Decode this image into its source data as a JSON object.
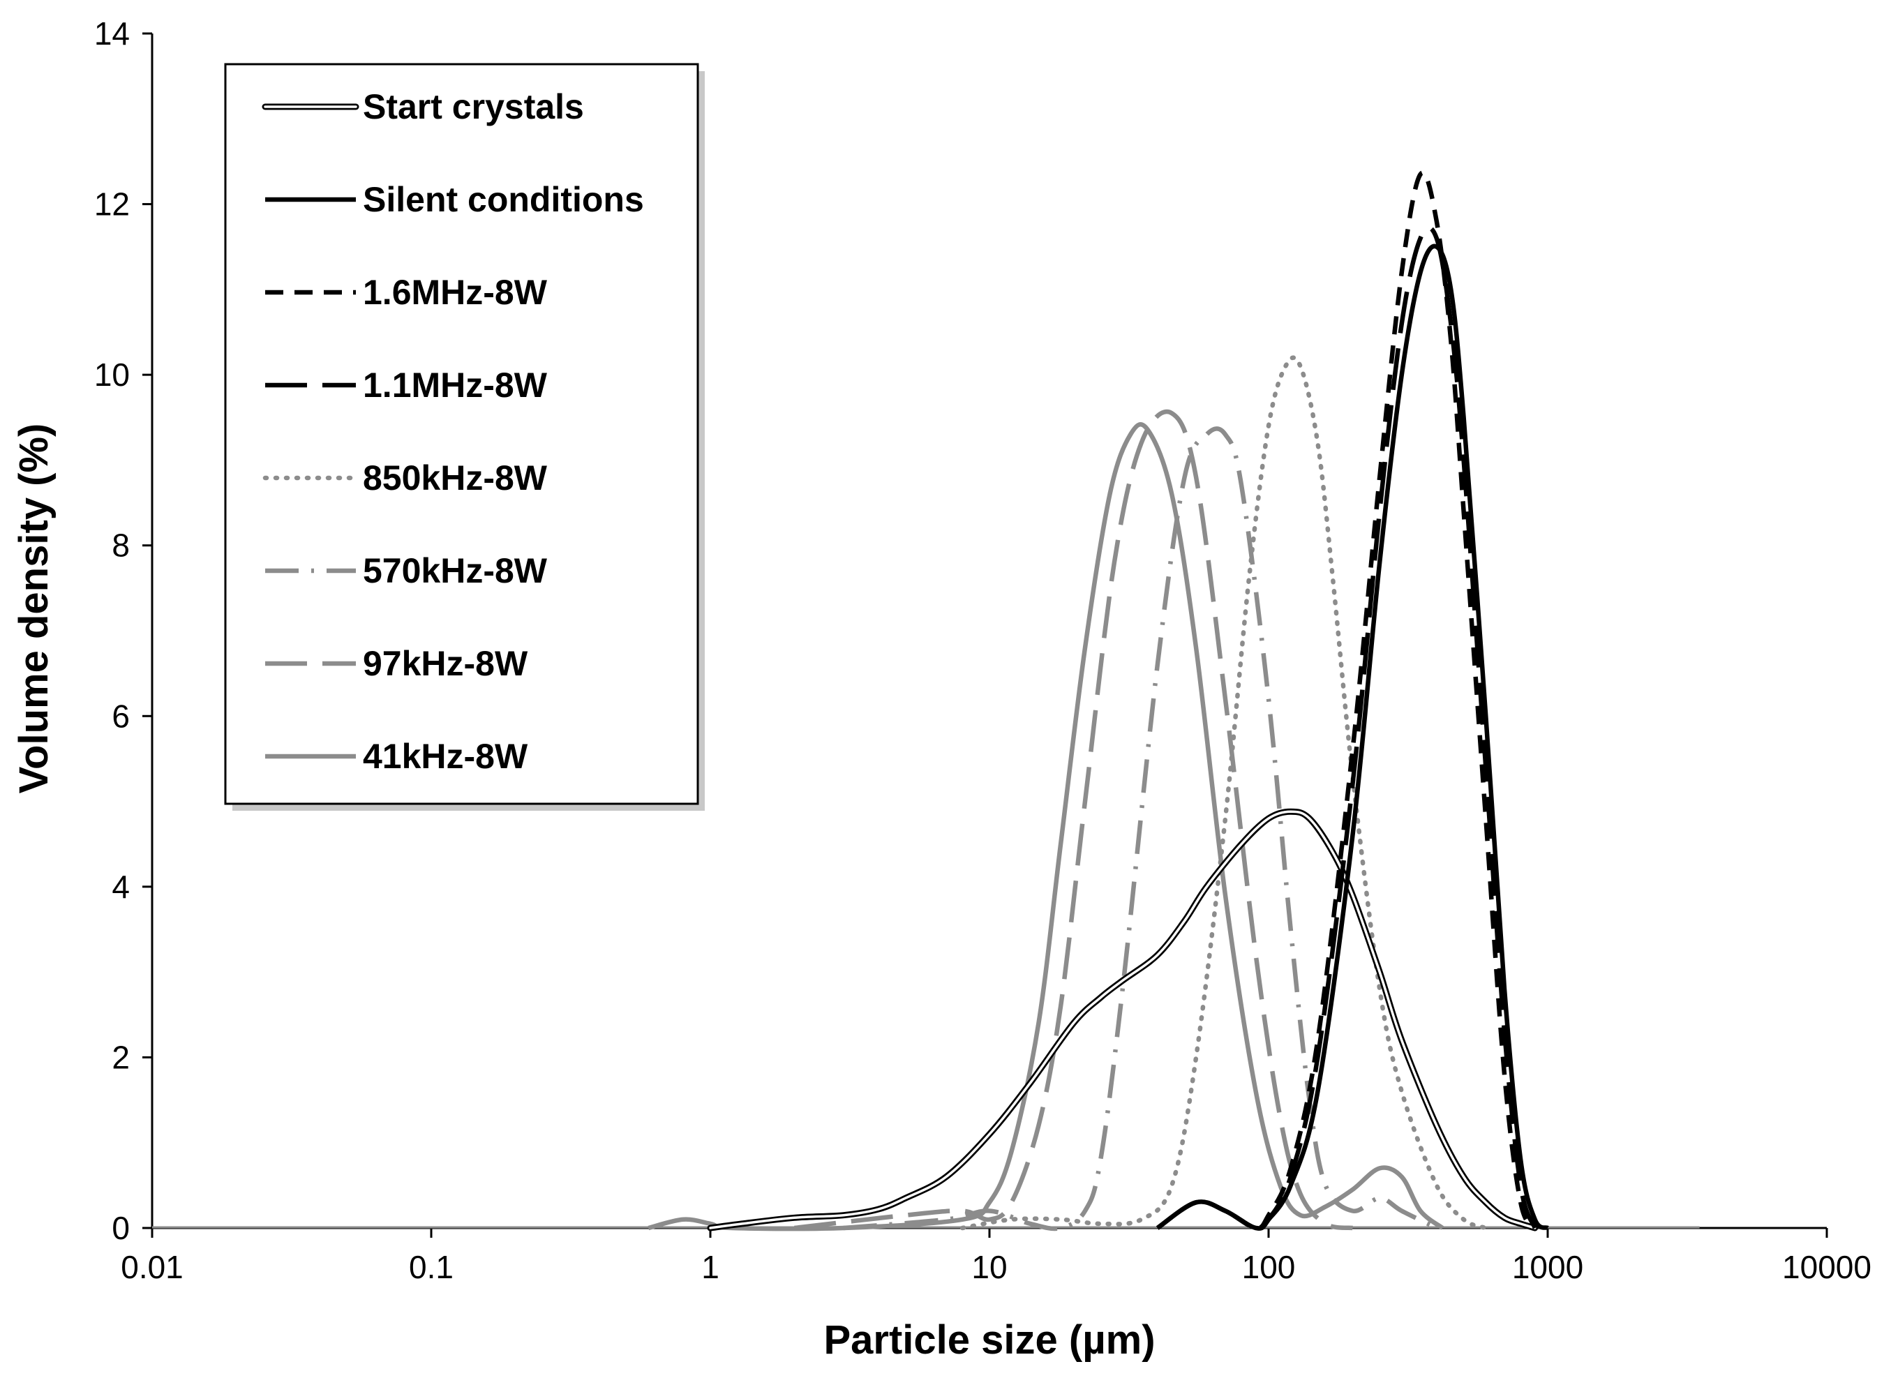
{
  "chart_data": {
    "type": "line",
    "title": "",
    "xlabel": "Particle size (µm)",
    "ylabel": "Volume density (%)",
    "xscale": "log",
    "xlim": [
      0.01,
      10000
    ],
    "ylim": [
      0,
      14
    ],
    "xticks": [
      {
        "value": 0.01,
        "label": "0.01"
      },
      {
        "value": 0.1,
        "label": "0.1"
      },
      {
        "value": 1,
        "label": "1"
      },
      {
        "value": 10,
        "label": "10"
      },
      {
        "value": 100,
        "label": "100"
      },
      {
        "value": 1000,
        "label": "1000"
      },
      {
        "value": 10000,
        "label": "10000"
      }
    ],
    "yticks": [
      {
        "value": 0,
        "label": "0"
      },
      {
        "value": 2,
        "label": "2"
      },
      {
        "value": 4,
        "label": "4"
      },
      {
        "value": 6,
        "label": "6"
      },
      {
        "value": 8,
        "label": "8"
      },
      {
        "value": 10,
        "label": "10"
      },
      {
        "value": 12,
        "label": "12"
      },
      {
        "value": 14,
        "label": "14"
      }
    ],
    "grid": false,
    "legend_position": "top-left",
    "series": [
      {
        "name": "Start crystals",
        "color": "#000000",
        "style": "double",
        "x": [
          1.0,
          1.3,
          2.0,
          3.0,
          4.0,
          5.0,
          7.0,
          10.0,
          14.0,
          20.0,
          25.0,
          30.0,
          40.0,
          50.0,
          60.0,
          80.0,
          100.0,
          120.0,
          140.0,
          170.0,
          200.0,
          250.0,
          300.0,
          400.0,
          500.0,
          600.0,
          700.0,
          800.0,
          900.0
        ],
        "y": [
          0.0,
          0.05,
          0.12,
          0.15,
          0.22,
          0.35,
          0.6,
          1.1,
          1.7,
          2.4,
          2.7,
          2.9,
          3.2,
          3.6,
          4.0,
          4.5,
          4.8,
          4.88,
          4.8,
          4.4,
          3.9,
          3.0,
          2.2,
          1.2,
          0.6,
          0.3,
          0.12,
          0.05,
          0.0
        ]
      },
      {
        "name": "Silent conditions",
        "color": "#000000",
        "style": "solid",
        "x": [
          40,
          55,
          70,
          90,
          100,
          120,
          150,
          200,
          250,
          300,
          350,
          400,
          450,
          500,
          600,
          700,
          800,
          900,
          1000
        ],
        "y": [
          0.0,
          0.3,
          0.2,
          0.0,
          0.1,
          0.5,
          1.6,
          4.6,
          7.8,
          10.0,
          11.2,
          11.5,
          11.0,
          9.5,
          6.0,
          2.8,
          0.8,
          0.1,
          0.0
        ]
      },
      {
        "name": "1.6MHz-8W",
        "color": "#000000",
        "style": "dashed",
        "x": [
          40,
          55,
          70,
          90,
          100,
          120,
          150,
          200,
          250,
          300,
          350,
          400,
          450,
          500,
          600,
          700,
          800,
          900
        ],
        "y": [
          0.0,
          0.3,
          0.2,
          0.0,
          0.15,
          0.7,
          2.2,
          5.6,
          8.8,
          11.2,
          12.35,
          11.8,
          10.4,
          8.4,
          4.8,
          1.8,
          0.3,
          0.0
        ]
      },
      {
        "name": "1.1MHz-8W",
        "color": "#000000",
        "style": "longdash",
        "x": [
          40,
          55,
          70,
          90,
          100,
          120,
          150,
          200,
          250,
          300,
          350,
          400,
          450,
          500,
          600,
          700,
          800,
          900
        ],
        "y": [
          0.0,
          0.3,
          0.2,
          0.0,
          0.1,
          0.6,
          2.0,
          5.2,
          8.4,
          10.6,
          11.6,
          11.6,
          10.6,
          9.0,
          5.4,
          2.3,
          0.5,
          0.0
        ]
      },
      {
        "name": "850kHz-8W",
        "color": "#8c8c8c",
        "style": "dotted",
        "x": [
          8,
          12,
          18,
          25,
          35,
          45,
          55,
          70,
          85,
          100,
          115,
          130,
          150,
          170,
          200,
          250,
          300,
          400,
          500,
          600
        ],
        "y": [
          0.0,
          0.1,
          0.1,
          0.05,
          0.1,
          0.5,
          2.0,
          4.8,
          7.6,
          9.4,
          10.1,
          10.1,
          9.2,
          7.6,
          5.3,
          2.8,
          1.6,
          0.5,
          0.1,
          0.0
        ]
      },
      {
        "name": "570kHz-8W",
        "color": "#8c8c8c",
        "style": "dashdot",
        "x": [
          3,
          7,
          10,
          14,
          18,
          22,
          25,
          30,
          40,
          50,
          60,
          70,
          80,
          100,
          120,
          140,
          160,
          200,
          250,
          300,
          400
        ],
        "y": [
          0.0,
          0.1,
          0.2,
          0.05,
          0.0,
          0.2,
          0.8,
          2.8,
          6.6,
          8.8,
          9.3,
          9.3,
          8.7,
          6.2,
          3.5,
          1.5,
          0.5,
          0.2,
          0.35,
          0.2,
          0.0
        ]
      },
      {
        "name": "97kHz-8W",
        "color": "#8c8c8c",
        "style": "longdash",
        "x": [
          2,
          5,
          8,
          10,
          12,
          15,
          18,
          22,
          28,
          35,
          45,
          55,
          70,
          90,
          110,
          130,
          160,
          200
        ],
        "y": [
          0.0,
          0.15,
          0.2,
          0.1,
          0.3,
          1.2,
          2.6,
          5.0,
          7.8,
          9.2,
          9.55,
          8.8,
          6.2,
          3.2,
          1.3,
          0.4,
          0.05,
          0.0
        ]
      },
      {
        "name": "41kHz-8W",
        "color": "#8c8c8c",
        "style": "solid",
        "x": [
          0.6,
          0.8,
          1.0,
          1.2,
          3.0,
          8.0,
          10.0,
          12.0,
          15.0,
          18.0,
          22.0,
          27.0,
          32.0,
          37.0,
          45.0,
          55.0,
          70.0,
          90.0,
          110.0,
          130.0,
          160.0,
          200.0,
          250.0,
          300.0,
          350.0,
          420.0
        ],
        "y": [
          0.0,
          0.1,
          0.05,
          0.0,
          0.0,
          0.1,
          0.3,
          0.9,
          2.4,
          4.5,
          6.8,
          8.6,
          9.3,
          9.35,
          8.6,
          6.8,
          3.9,
          1.6,
          0.5,
          0.15,
          0.25,
          0.45,
          0.7,
          0.6,
          0.2,
          0.0
        ]
      }
    ]
  }
}
